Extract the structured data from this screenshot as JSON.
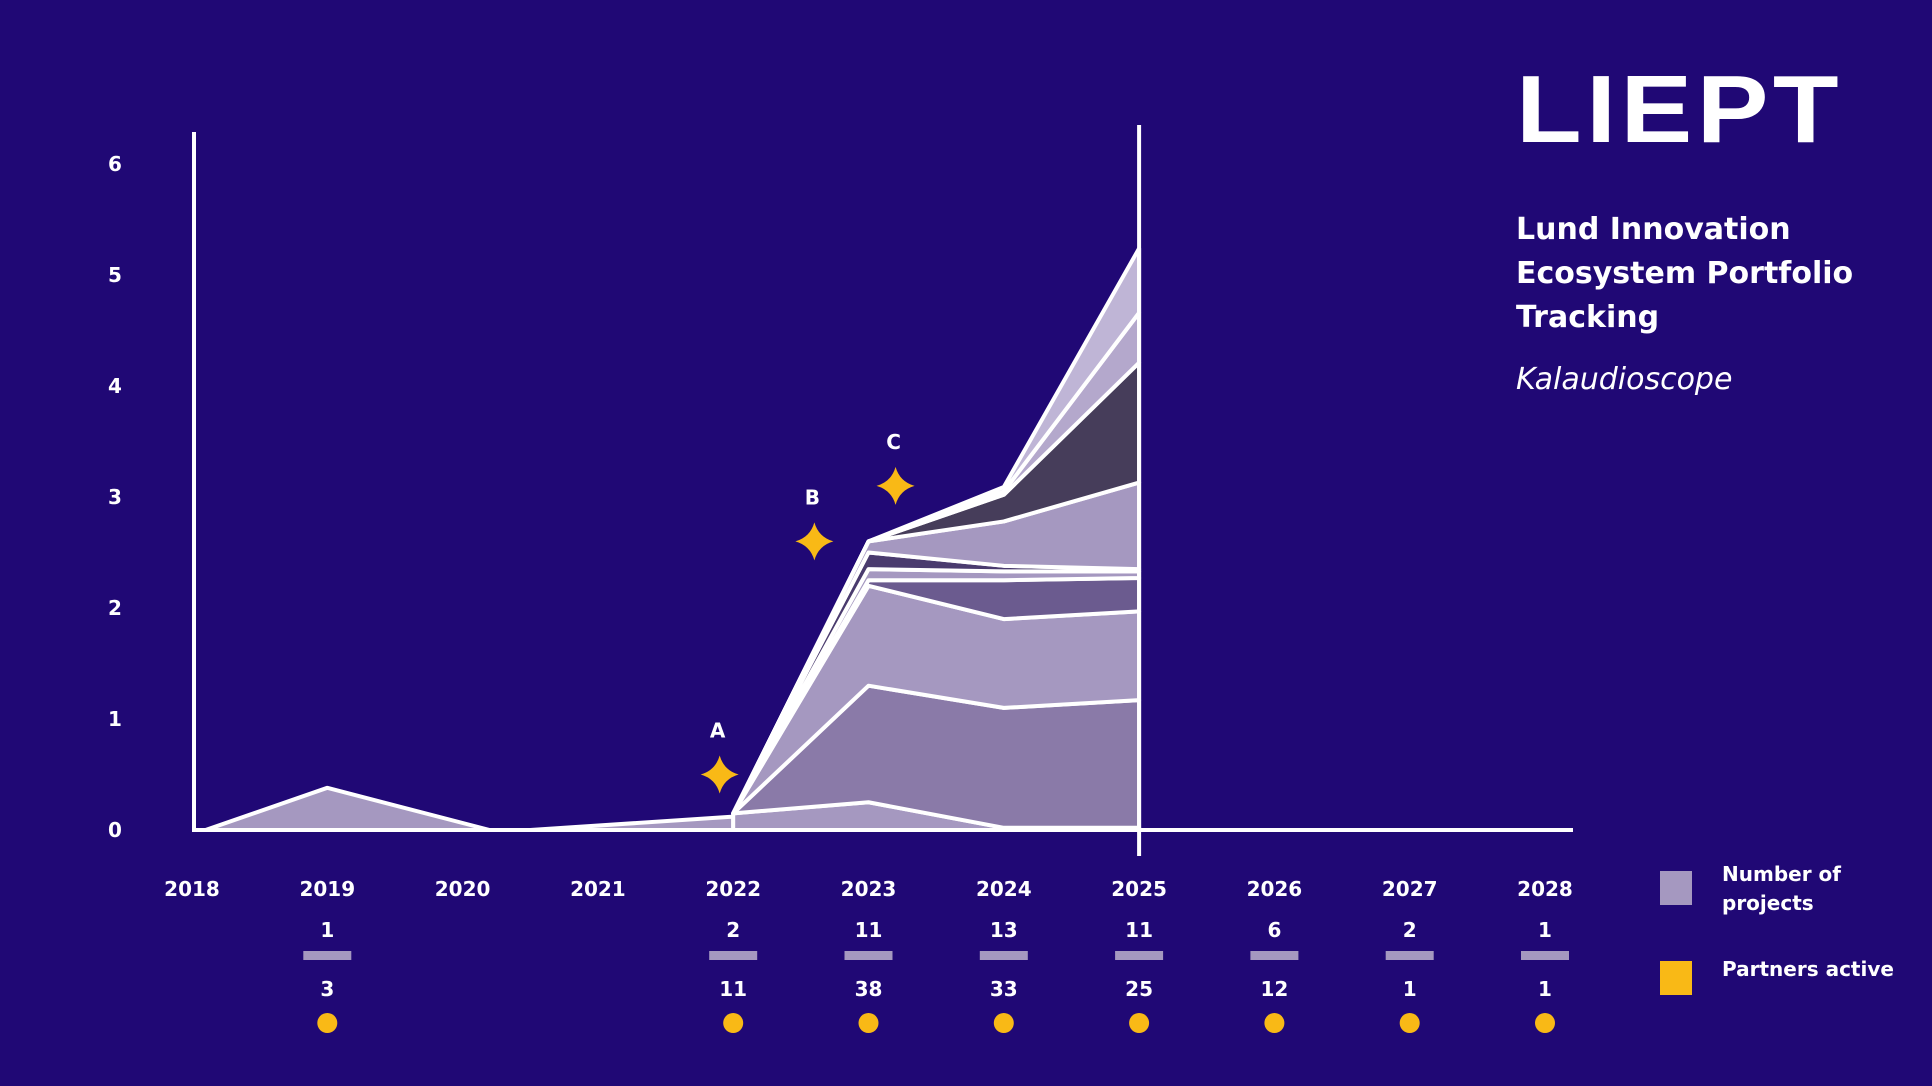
{
  "brand": {
    "logo_text": "LIEPT",
    "title": "Lund Innovation Ecosystem Portfolio Tracking",
    "subtitle": "Kalaudioscope"
  },
  "legend": {
    "items": [
      {
        "label": "Number of projects",
        "color": "#a598c0"
      },
      {
        "label": "Partners active",
        "color": "#f9b916"
      }
    ]
  },
  "chart_data": {
    "type": "area",
    "stacked": true,
    "title": "",
    "xlabel": "",
    "ylabel": "",
    "ylim": [
      0,
      6
    ],
    "yticks": [
      0,
      1,
      2,
      3,
      4,
      5,
      6
    ],
    "xlim": [
      2018,
      2028
    ],
    "x_ticks": [
      2018,
      2019,
      2020,
      2021,
      2022,
      2023,
      2024,
      2025,
      2026,
      2027,
      2028
    ],
    "grid": false,
    "current_year_marker": 2025,
    "layers": [
      {
        "x": [
          2018.1,
          2019,
          2020.2,
          2020.5,
          2022
        ],
        "values": [
          0,
          0.38,
          0,
          0,
          0.12
        ],
        "color": "#a598c0"
      },
      {
        "x": [
          2022,
          2023,
          2024,
          2025
        ],
        "values": [
          0.15,
          0.25,
          0.02,
          0.02
        ],
        "color": "#a598c0"
      },
      {
        "x": [
          2022,
          2023,
          2024,
          2025
        ],
        "values": [
          0,
          1.05,
          1.08,
          1.15
        ],
        "color": "#8a7aa8"
      },
      {
        "x": [
          2022,
          2023,
          2024,
          2025
        ],
        "values": [
          0,
          0.9,
          0.8,
          0.8
        ],
        "color": "#a598c0"
      },
      {
        "x": [
          2022,
          2023,
          2024,
          2025
        ],
        "values": [
          0,
          0.05,
          0.35,
          0.3
        ],
        "color": "#6b5b8f"
      },
      {
        "x": [
          2022,
          2023,
          2024,
          2025
        ],
        "values": [
          0,
          0.1,
          0.08,
          0.06
        ],
        "color": "#a598c0"
      },
      {
        "x": [
          2022,
          2023,
          2024,
          2025
        ],
        "values": [
          0,
          0.15,
          0.05,
          0.02
        ],
        "color": "#4a3b6e"
      },
      {
        "x": [
          2022,
          2023,
          2024,
          2025
        ],
        "values": [
          0,
          0.1,
          0.4,
          0.78
        ],
        "color": "#a598c0"
      },
      {
        "x": [
          2022,
          2023,
          2024,
          2025
        ],
        "values": [
          0,
          0,
          0.24,
          1.08
        ],
        "color": "#463d5a"
      },
      {
        "x": [
          2022,
          2023,
          2024,
          2025
        ],
        "values": [
          0,
          0,
          0.03,
          0.45
        ],
        "color": "#b4a8cc"
      },
      {
        "x": [
          2022,
          2023,
          2024,
          2025
        ],
        "values": [
          0,
          0,
          0.04,
          0.58
        ],
        "color": "#bfb5d6"
      }
    ],
    "annotations": [
      {
        "label": "A",
        "x": 2021.9,
        "y": 0.5
      },
      {
        "label": "B",
        "x": 2022.6,
        "y": 2.6
      },
      {
        "label": "C",
        "x": 2023.2,
        "y": 3.1
      }
    ],
    "summary": [
      {
        "year": "2018",
        "projects": null,
        "partners": null
      },
      {
        "year": "2019",
        "projects": "1",
        "partners": "3"
      },
      {
        "year": "2020",
        "projects": null,
        "partners": null
      },
      {
        "year": "2021",
        "projects": null,
        "partners": null
      },
      {
        "year": "2022",
        "projects": "2",
        "partners": "11"
      },
      {
        "year": "2023",
        "projects": "11",
        "partners": "38"
      },
      {
        "year": "2024",
        "projects": "13",
        "partners": "33"
      },
      {
        "year": "2025",
        "projects": "11",
        "partners": "25"
      },
      {
        "year": "2026",
        "projects": "6",
        "partners": "12"
      },
      {
        "year": "2027",
        "projects": "2",
        "partners": "1"
      },
      {
        "year": "2028",
        "projects": "1",
        "partners": "1"
      }
    ],
    "colors": {
      "background": "#200875",
      "axis": "#ffffff",
      "projects": "#a598c0",
      "partners": "#f9b916"
    }
  }
}
